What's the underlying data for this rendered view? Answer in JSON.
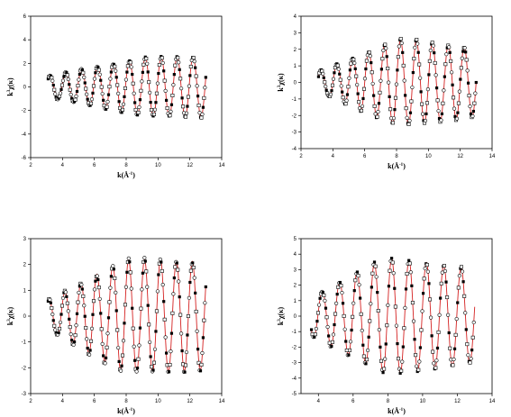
{
  "chart_data": [
    {
      "type": "scatter",
      "panel": "top-left",
      "xlabel_main": "k(Å",
      "xlabel_sup": "-1",
      "xlabel_end": ")",
      "ylabel_pre": "k",
      "ylabel_sup": "3",
      "ylabel_post": "χ(κ)",
      "xlim": [
        2,
        14
      ],
      "ylim": [
        -6,
        6
      ],
      "xticks": [
        2,
        4,
        6,
        8,
        10,
        12,
        14
      ],
      "yticks": [
        -6,
        -4,
        -2,
        0,
        2,
        4,
        6
      ],
      "xtick_labels": [
        "2",
        "4",
        "6",
        "8",
        "10",
        "12",
        "14"
      ],
      "ytick_labels": [
        "-6",
        "-4",
        "-2",
        "0",
        "2",
        "4",
        "6"
      ],
      "k_range": [
        3.1,
        13.0
      ],
      "oscillation": {
        "base_amplitude": 0.9,
        "amplitude_growth": 0.26,
        "amplitude_max": 4.6,
        "amplitude_decay": 0.85,
        "decay_start": 9.2,
        "frequency": 1.0,
        "phase": 0.3
      },
      "series": [
        {
          "marker": "filled-square",
          "color": "#000000"
        },
        {
          "marker": "open-square",
          "color": "#000000"
        },
        {
          "marker": "open-circle",
          "color": "#000000"
        },
        {
          "marker": "line",
          "color": "#d42020"
        }
      ]
    },
    {
      "type": "scatter",
      "panel": "top-right",
      "xlabel_main": "k(Å",
      "xlabel_sup": "-1",
      "xlabel_end": ")",
      "ylabel_pre": "k",
      "ylabel_sup": "3",
      "ylabel_post": "χ(κ)",
      "xlim": [
        2,
        14
      ],
      "ylim": [
        -4,
        4
      ],
      "xticks": [
        2,
        4,
        6,
        8,
        10,
        12,
        14
      ],
      "yticks": [
        -4,
        -3,
        -2,
        -1,
        0,
        1,
        2,
        3,
        4
      ],
      "xtick_labels": [
        "2",
        "4",
        "6",
        "8",
        "10",
        "12",
        "14"
      ],
      "ytick_labels": [
        "-4",
        "-3",
        "-2",
        "-1",
        "0",
        "1",
        "2",
        "3",
        "4"
      ],
      "k_range": [
        3.1,
        13.0
      ],
      "oscillation": {
        "base_amplitude": 0.6,
        "amplitude_growth": 0.4,
        "amplitude_max": 2.6,
        "amplitude_decay": 0.45,
        "decay_start": 8.8,
        "frequency": 1.0,
        "phase": 0.0
      },
      "series": [
        {
          "marker": "filled-square",
          "color": "#000000"
        },
        {
          "marker": "open-square",
          "color": "#000000"
        },
        {
          "marker": "open-circle",
          "color": "#000000"
        },
        {
          "marker": "line",
          "color": "#d42020"
        }
      ]
    },
    {
      "type": "scatter",
      "panel": "bottom-left",
      "xlabel_main": "k(Å",
      "xlabel_sup": "-1",
      "xlabel_end": ")",
      "ylabel_pre": "k",
      "ylabel_sup": "3",
      "ylabel_post": "χ(κ)",
      "xlim": [
        2,
        14
      ],
      "ylim": [
        -3,
        3
      ],
      "xticks": [
        2,
        4,
        6,
        8,
        10,
        12,
        14
      ],
      "yticks": [
        -3,
        -2,
        -1,
        0,
        1,
        2,
        3
      ],
      "xtick_labels": [
        "2",
        "4",
        "6",
        "8",
        "10",
        "12",
        "14"
      ],
      "ytick_labels": [
        "-3",
        "-2",
        "-1",
        "0",
        "1",
        "2",
        "3"
      ],
      "k_range": [
        3.1,
        13.0
      ],
      "oscillation": {
        "base_amplitude": 0.55,
        "amplitude_growth": 0.34,
        "amplitude_max": 2.2,
        "amplitude_decay": 0.1,
        "decay_start": 9.5,
        "frequency": 1.0,
        "phase": 0.6
      },
      "series": [
        {
          "marker": "filled-square",
          "color": "#000000"
        },
        {
          "marker": "open-square",
          "color": "#000000"
        },
        {
          "marker": "open-circle",
          "color": "#000000"
        },
        {
          "marker": "line",
          "color": "#d42020"
        }
      ]
    },
    {
      "type": "scatter",
      "panel": "bottom-right",
      "xlabel_main": "k(Å",
      "xlabel_sup": "-1",
      "xlabel_end": ")",
      "ylabel_pre": "k",
      "ylabel_sup": "3",
      "ylabel_post": "χ(κ)",
      "xlim": [
        3,
        14
      ],
      "ylim": [
        -5,
        5
      ],
      "xticks": [
        4,
        6,
        8,
        10,
        12,
        14
      ],
      "yticks": [
        -5,
        -4,
        -3,
        -2,
        -1,
        0,
        1,
        2,
        3,
        4,
        5
      ],
      "xtick_labels": [
        "4",
        "6",
        "8",
        "10",
        "12",
        "14"
      ],
      "ytick_labels": [
        "-5",
        "-4",
        "-3",
        "-2",
        "-1",
        "0",
        "1",
        "2",
        "3",
        "4",
        "5"
      ],
      "k_range": [
        3.6,
        13.0
      ],
      "oscillation": {
        "base_amplitude": 0.9,
        "amplitude_growth": 0.6,
        "amplitude_max": 3.7,
        "amplitude_decay": 0.55,
        "decay_start": 8.7,
        "frequency": 1.0,
        "phase": 0.2
      },
      "series": [
        {
          "marker": "filled-square",
          "color": "#000000"
        },
        {
          "marker": "open-square",
          "color": "#000000"
        },
        {
          "marker": "open-circle",
          "color": "#000000"
        },
        {
          "marker": "line",
          "color": "#d42020"
        }
      ]
    }
  ]
}
